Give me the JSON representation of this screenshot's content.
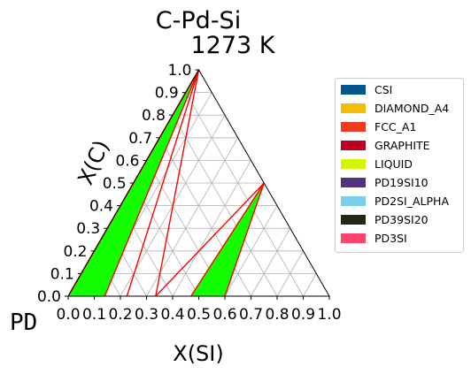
{
  "chart_data": {
    "type": "ternary",
    "title": "C-Pd-Si",
    "subtitle": "1273  K",
    "xlabel": "X(SI)",
    "ylabel": "X(C)",
    "corner_label": "PD",
    "xlim": [
      0,
      1
    ],
    "ylim": [
      0,
      1
    ],
    "x_ticks": [
      "0.0",
      "0.1",
      "0.2",
      "0.3",
      "0.4",
      "0.5",
      "0.6",
      "0.7",
      "0.8",
      "0.9",
      "1.0"
    ],
    "y_ticks": [
      "0.0",
      "0.1",
      "0.2",
      "0.3",
      "0.4",
      "0.5",
      "0.6",
      "0.7",
      "0.8",
      "0.9",
      "1.0"
    ],
    "grid": true,
    "legend_placement": "right",
    "legend": [
      {
        "label": "CSI",
        "color": "#01568f"
      },
      {
        "label": "DIAMOND_A4",
        "color": "#f0c000"
      },
      {
        "label": "FCC_A1",
        "color": "#f03c1e"
      },
      {
        "label": "GRAPHITE",
        "color": "#bb0026"
      },
      {
        "label": "LIQUID",
        "color": "#d2f500"
      },
      {
        "label": "PD19SI10",
        "color": "#52317f"
      },
      {
        "label": "PD2SI_ALPHA",
        "color": "#7cd0ed"
      },
      {
        "label": "PD39SI20",
        "color": "#1e2916"
      },
      {
        "label": "PD3SI",
        "color": "#ff4569"
      }
    ],
    "regions": [
      {
        "color": "#11ff00",
        "points": [
          [
            0.0,
            0.0
          ],
          [
            0.14,
            0.0
          ],
          [
            0.0,
            1.0
          ]
        ]
      },
      {
        "color": "#11ff00",
        "points": [
          [
            0.0,
            0.0
          ],
          [
            0.048,
            0.0
          ],
          [
            0.0,
            0.05
          ]
        ]
      },
      {
        "color": "#11ff00",
        "points": [
          [
            0.47,
            0.0
          ],
          [
            0.6,
            0.0
          ],
          [
            0.5,
            0.5
          ]
        ]
      }
    ],
    "tie_lines": [
      [
        [
          0.0,
          0.02
        ],
        [
          0.0,
          0.98
        ]
      ],
      [
        [
          0.0,
          0.0
        ],
        [
          0.0,
          1.0
        ]
      ],
      [
        [
          0.14,
          0.0
        ],
        [
          0.0,
          1.0
        ]
      ],
      [
        [
          0.225,
          0.0
        ],
        [
          0.0,
          1.0
        ]
      ],
      [
        [
          0.335,
          0.0
        ],
        [
          0.0,
          1.0
        ]
      ],
      [
        [
          0.335,
          0.0
        ],
        [
          0.5,
          0.5
        ]
      ],
      [
        [
          0.47,
          0.0
        ],
        [
          0.5,
          0.5
        ]
      ],
      [
        [
          0.6,
          0.0
        ],
        [
          0.5,
          0.5
        ]
      ]
    ],
    "tie_color": "#ff0000"
  }
}
